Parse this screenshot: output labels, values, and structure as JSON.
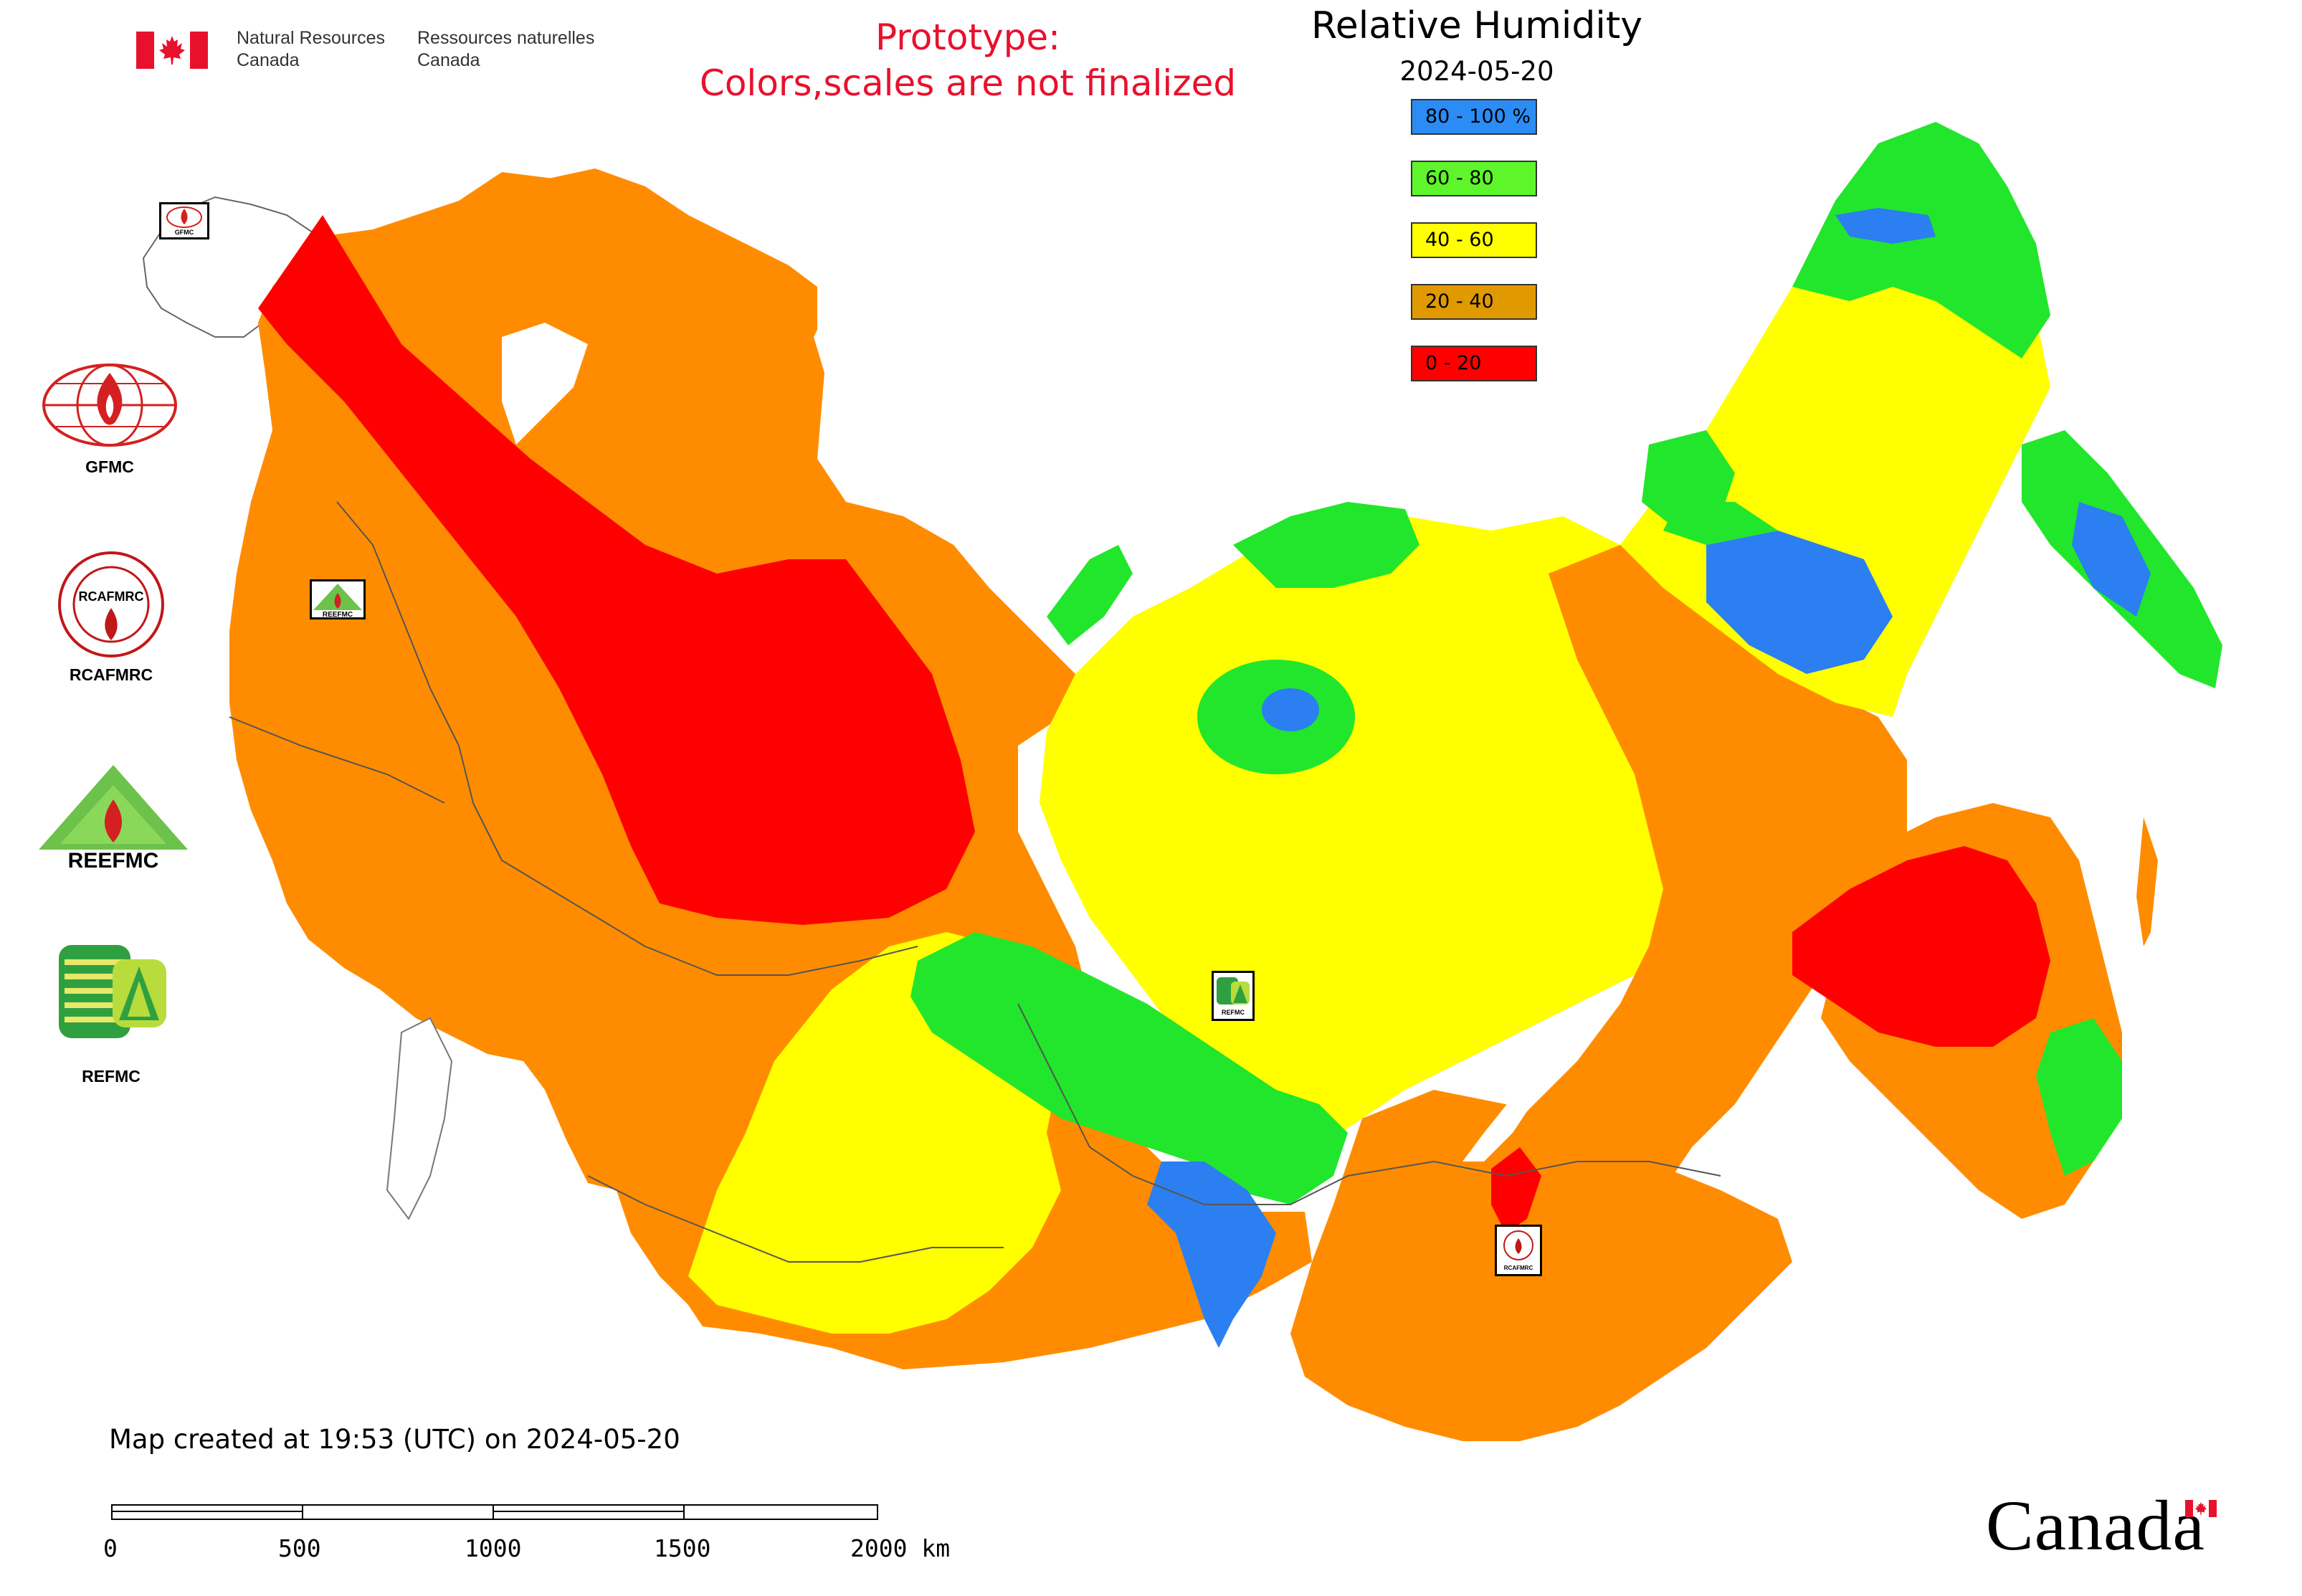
{
  "header": {
    "dept_en_line1": "Natural Resources",
    "dept_en_line2": "Canada",
    "dept_fr_line1": "Ressources naturelles",
    "dept_fr_line2": "Canada",
    "prototype_line1": "Prototype:",
    "prototype_line2": "Colors,scales are not finalized"
  },
  "legend": {
    "title": "Relative Humidity",
    "date": "2024-05-20",
    "items": [
      {
        "label": "80 - 100 %",
        "color": "#2b8cf5"
      },
      {
        "label": "60 - 80",
        "color": "#5ef52b"
      },
      {
        "label": "40 - 60",
        "color": "#ffff00"
      },
      {
        "label": "20 - 40",
        "color": "#e09a00"
      },
      {
        "label": "0 - 20",
        "color": "#ff0000"
      }
    ]
  },
  "side_logos": [
    {
      "label": "GFMC",
      "icon": "gfmc-logo"
    },
    {
      "label": "RCAFMRC",
      "icon": "rcafmrc-logo"
    },
    {
      "label": "REEFMC",
      "icon": "reefmc-logo"
    },
    {
      "label": "REFMC",
      "icon": "refmc-logo"
    }
  ],
  "map_markers": [
    {
      "text": "GFMC"
    },
    {
      "text": "REEFMC"
    },
    {
      "text": "REFMC"
    },
    {
      "text": "RCAFMRC"
    }
  ],
  "map_colors": {
    "red": "#ff0000",
    "orange": "#ff8c00",
    "yellow": "#ffff00",
    "green": "#22e62b",
    "blue": "#2b7ff0",
    "border": "#555555"
  },
  "caption": "Map created at 19:53 (UTC) on 2024-05-20",
  "scale_bar": {
    "labels": [
      "0",
      "500",
      "1000",
      "1500",
      "2000 km"
    ]
  },
  "wordmark": "Canada"
}
